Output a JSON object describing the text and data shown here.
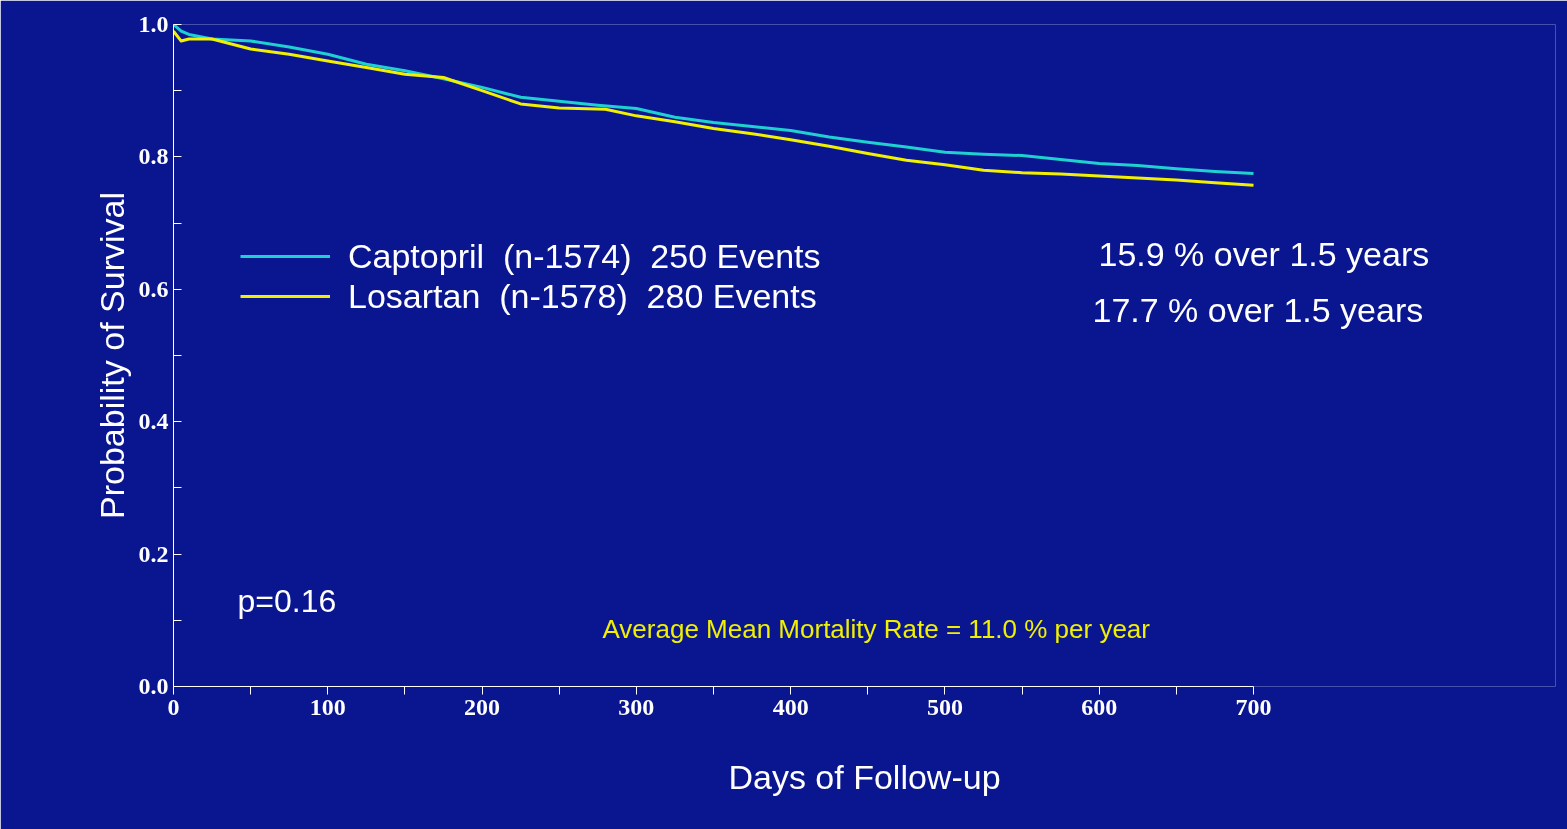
{
  "chart_data": {
    "type": "line",
    "xlabel": "Days of Follow-up",
    "ylabel": "Probability of Survival",
    "xlim": [
      0,
      700
    ],
    "ylim": [
      0,
      1.0
    ],
    "xticks": [
      0,
      {
        "value": 50,
        "label": null
      },
      100,
      {
        "value": 150,
        "label": null
      },
      200,
      {
        "value": 250,
        "label": null
      },
      300,
      {
        "value": 350,
        "label": null
      },
      400,
      {
        "value": 450,
        "label": null
      },
      500,
      {
        "value": 550,
        "label": null
      },
      600,
      {
        "value": 650,
        "label": null
      },
      700
    ],
    "yticks": [
      {
        "value": 0,
        "label": "0.0"
      },
      {
        "value": 0.1,
        "label": null
      },
      0.2,
      {
        "value": 0.3,
        "label": null
      },
      0.4,
      {
        "value": 0.5,
        "label": null
      },
      0.6,
      {
        "value": 0.7,
        "label": null
      },
      0.8,
      {
        "value": 0.9,
        "label": null
      },
      {
        "value": 1.0,
        "label": "1.0"
      }
    ],
    "grid": false,
    "legend": "left",
    "marker": "none",
    "line_style": "solid",
    "series": [
      {
        "name": "Captopril  (n-1574)  250 Events",
        "color": "#20d0d0",
        "x": [
          0,
          5,
          10,
          25,
          50,
          75,
          100,
          125,
          150,
          175,
          200,
          225,
          250,
          275,
          300,
          325,
          350,
          375,
          400,
          425,
          450,
          475,
          500,
          525,
          550,
          575,
          600,
          625,
          650,
          675,
          700
        ],
        "values": [
          1.0,
          0.99,
          0.985,
          0.978,
          0.975,
          0.966,
          0.955,
          0.94,
          0.93,
          0.918,
          0.905,
          0.89,
          0.884,
          0.878,
          0.873,
          0.86,
          0.852,
          0.846,
          0.84,
          0.83,
          0.822,
          0.815,
          0.807,
          0.804,
          0.802,
          0.796,
          0.79,
          0.787,
          0.782,
          0.778,
          0.775
        ]
      },
      {
        "name": "Losartan  (n-1578)  280 Events",
        "color": "#f0f000",
        "x": [
          0,
          5,
          10,
          25,
          50,
          75,
          100,
          125,
          150,
          175,
          200,
          225,
          250,
          280,
          300,
          325,
          350,
          375,
          400,
          425,
          450,
          475,
          500,
          525,
          550,
          575,
          600,
          625,
          650,
          675,
          700
        ],
        "values": [
          0.99,
          0.975,
          0.978,
          0.978,
          0.963,
          0.955,
          0.945,
          0.935,
          0.925,
          0.92,
          0.9,
          0.88,
          0.874,
          0.872,
          0.862,
          0.853,
          0.843,
          0.835,
          0.826,
          0.816,
          0.805,
          0.795,
          0.788,
          0.78,
          0.776,
          0.774,
          0.771,
          0.768,
          0.765,
          0.761,
          0.757
        ]
      }
    ],
    "annotations": [
      "15.9 % over 1.5 years",
      "17.7 % over 1.5 years",
      "p=0.16",
      "Average Mean Mortality Rate = 11.0 % per year"
    ]
  }
}
